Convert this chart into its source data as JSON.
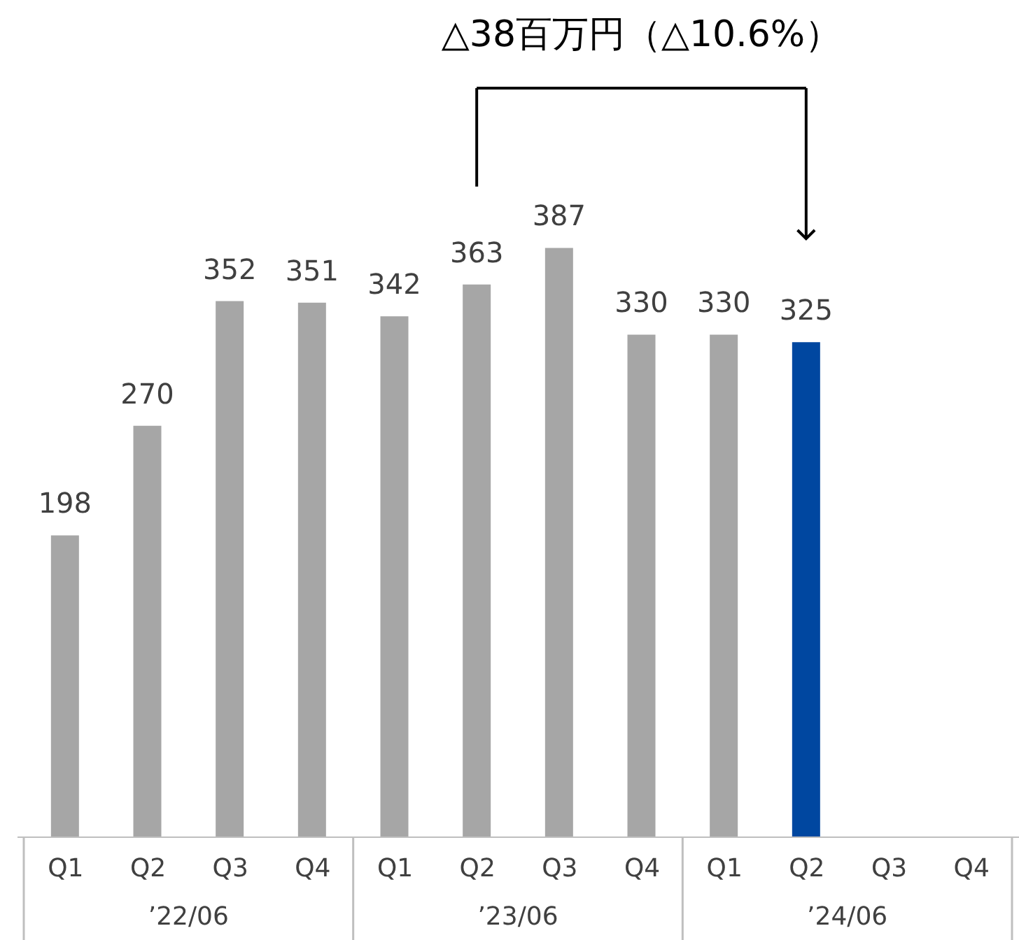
{
  "chart_data": {
    "type": "bar",
    "categories": [
      "Q1",
      "Q2",
      "Q3",
      "Q4",
      "Q1",
      "Q2",
      "Q3",
      "Q4",
      "Q1",
      "Q2",
      "Q3",
      "Q4"
    ],
    "values": [
      198,
      270,
      352,
      351,
      342,
      363,
      387,
      330,
      330,
      325,
      null,
      null
    ],
    "colors": [
      "#a6a6a6",
      "#a6a6a6",
      "#a6a6a6",
      "#a6a6a6",
      "#a6a6a6",
      "#a6a6a6",
      "#a6a6a6",
      "#a6a6a6",
      "#a6a6a6",
      "#0047a0",
      "#a6a6a6",
      "#a6a6a6"
    ],
    "ylim": [
      0,
      550
    ],
    "data_labels": true,
    "annotations": [
      "△38百万円（△10.6%）",
      "’22/06",
      "’23/06",
      "’24/06"
    ]
  }
}
